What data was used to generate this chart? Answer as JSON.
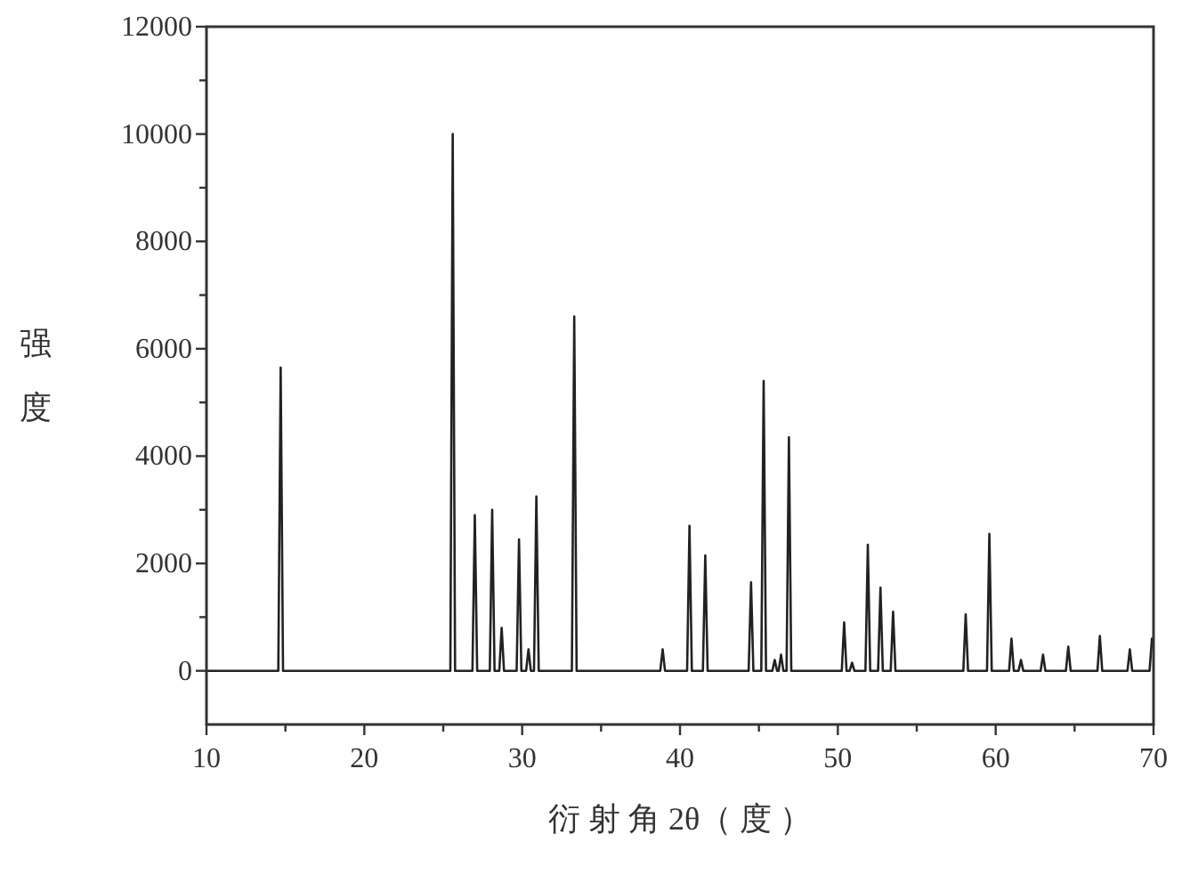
{
  "chart_data": {
    "type": "line",
    "xlabel": "衍 射 角 2θ（ 度 ）",
    "ylabel": "强度",
    "x": [
      10,
      14.55,
      14.7,
      14.85,
      25.45,
      25.6,
      25.75,
      26.85,
      27.0,
      27.15,
      27.95,
      28.1,
      28.25,
      28.55,
      28.7,
      28.85,
      29.65,
      29.8,
      29.95,
      30.25,
      30.4,
      30.55,
      30.75,
      30.9,
      31.05,
      33.15,
      33.3,
      33.45,
      38.75,
      38.9,
      39.05,
      40.45,
      40.6,
      40.75,
      41.45,
      41.6,
      41.75,
      44.35,
      44.5,
      44.65,
      45.15,
      45.3,
      45.45,
      45.85,
      46.0,
      46.15,
      46.25,
      46.4,
      46.55,
      46.75,
      46.9,
      47.05,
      50.25,
      50.4,
      50.55,
      50.75,
      50.9,
      51.05,
      51.75,
      51.9,
      52.05,
      52.55,
      52.7,
      52.85,
      53.35,
      53.5,
      53.65,
      57.95,
      58.1,
      58.25,
      59.45,
      59.6,
      59.75,
      60.85,
      61.0,
      61.15,
      61.45,
      61.6,
      61.75,
      62.85,
      63.0,
      63.15,
      64.45,
      64.6,
      64.75,
      66.45,
      66.6,
      66.75,
      68.35,
      68.5,
      68.65,
      69.75,
      69.9
    ],
    "series": [
      {
        "color": "#222222",
        "values": [
          0,
          0,
          5650,
          0,
          0,
          10000,
          0,
          0,
          2900,
          0,
          0,
          3000,
          0,
          0,
          800,
          0,
          0,
          2450,
          0,
          0,
          400,
          0,
          0,
          3250,
          0,
          0,
          6600,
          0,
          0,
          400,
          0,
          0,
          2700,
          0,
          0,
          2150,
          0,
          0,
          1650,
          0,
          0,
          5400,
          0,
          0,
          200,
          0,
          0,
          300,
          0,
          0,
          4350,
          0,
          0,
          900,
          0,
          0,
          150,
          0,
          0,
          2350,
          0,
          0,
          1550,
          0,
          0,
          1100,
          0,
          0,
          1050,
          0,
          0,
          2550,
          0,
          0,
          600,
          0,
          0,
          200,
          0,
          0,
          300,
          0,
          0,
          450,
          0,
          0,
          650,
          0,
          0,
          400,
          0,
          0,
          600
        ]
      }
    ],
    "xlim": [
      10,
      70
    ],
    "ylim": [
      -1000,
      12000
    ],
    "xticks": [
      10,
      {
        "value": 15,
        "label": null
      },
      20,
      {
        "value": 25,
        "label": null
      },
      30,
      {
        "value": 35,
        "label": null
      },
      40,
      {
        "value": 45,
        "label": null
      },
      50,
      {
        "value": 55,
        "label": null
      },
      60,
      {
        "value": 65,
        "label": null
      },
      70
    ],
    "yticks": [
      0,
      {
        "value": 1000,
        "label": null
      },
      2000,
      {
        "value": 3000,
        "label": null
      },
      4000,
      {
        "value": 5000,
        "label": null
      },
      6000,
      {
        "value": 7000,
        "label": null
      },
      8000,
      {
        "value": 9000,
        "label": null
      },
      10000,
      {
        "value": 11000,
        "label": null
      },
      12000
    ]
  }
}
